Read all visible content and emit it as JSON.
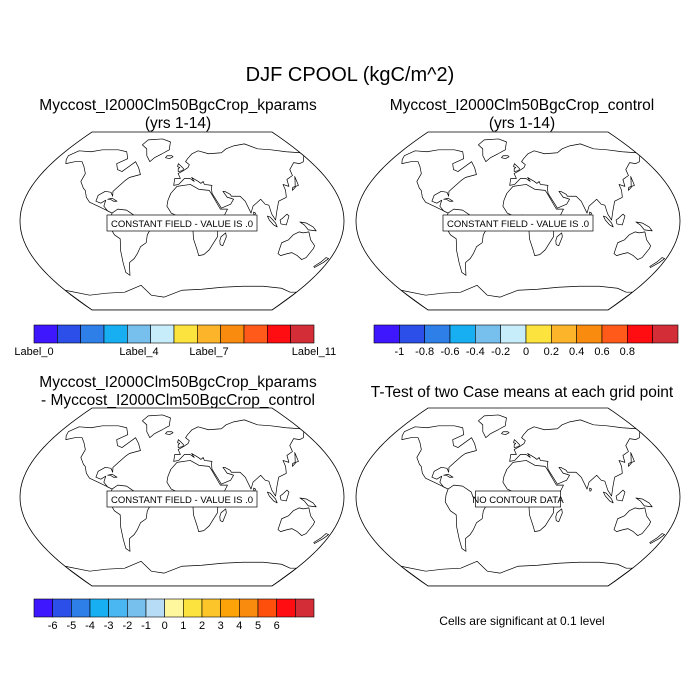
{
  "main_title": "DJF CPOOL (kgC/m^2)",
  "panels": {
    "top_left": {
      "title_line1": "Myccost_I2000Clm50BgcCrop_kparams",
      "title_line2": "(yrs 1-14)",
      "message": "CONSTANT FIELD - VALUE IS .0"
    },
    "top_right": {
      "title_line1": "Myccost_I2000Clm50BgcCrop_control",
      "title_line2": "(yrs 1-14)",
      "message": "CONSTANT FIELD - VALUE IS .0"
    },
    "bottom_left": {
      "title_line1": "Myccost_I2000Clm50BgcCrop_kparams",
      "title_line2": "- Myccost_I2000Clm50BgcCrop_control",
      "message": "CONSTANT FIELD - VALUE IS .0"
    },
    "bottom_right": {
      "title_line1": "T-Test of two Case means at each grid point",
      "message": "NO CONTOUR DATA"
    }
  },
  "colorbars": {
    "top_left": {
      "colors": [
        "#3f17ff",
        "#2b4fe8",
        "#2e7fe8",
        "#17aff2",
        "#77c0ee",
        "#c7ecfa",
        "#fde33d",
        "#fcb52a",
        "#f98b0f",
        "#ff5a19",
        "#ff0d10",
        "#d32e38"
      ],
      "labels": [
        "Label_0",
        "Label_4",
        "Label_7",
        "Label_11"
      ],
      "label_positions": [
        0,
        4,
        7,
        11
      ]
    },
    "top_right": {
      "colors": [
        "#3f17ff",
        "#2b4fe8",
        "#2e7fe8",
        "#17aff2",
        "#77c0ee",
        "#c7ecfa",
        "#fde33d",
        "#fcb52a",
        "#f98b0f",
        "#ff5a19",
        "#ff0d10",
        "#d32e38"
      ],
      "labels": [
        "-1",
        "-0.8",
        "-0.6",
        "-0.4",
        "-0.2",
        "0",
        "0.2",
        "0.4",
        "0.6",
        "0.8"
      ]
    },
    "bottom_left": {
      "colors": [
        "#3f17ff",
        "#2b4fe8",
        "#2e7fe8",
        "#17aff2",
        "#4bb7f2",
        "#77c0ee",
        "#b6dcf6",
        "#fff79e",
        "#fde33d",
        "#fcc62a",
        "#fca30a",
        "#f98b0f",
        "#ff4f0c",
        "#ff0d10",
        "#d32e38"
      ],
      "labels": [
        "-6",
        "-5",
        "-4",
        "-3",
        "-2",
        "-1",
        "0",
        "1",
        "2",
        "3",
        "4",
        "5",
        "6"
      ]
    }
  },
  "significance_note": "Cells are significant at 0.1 level"
}
